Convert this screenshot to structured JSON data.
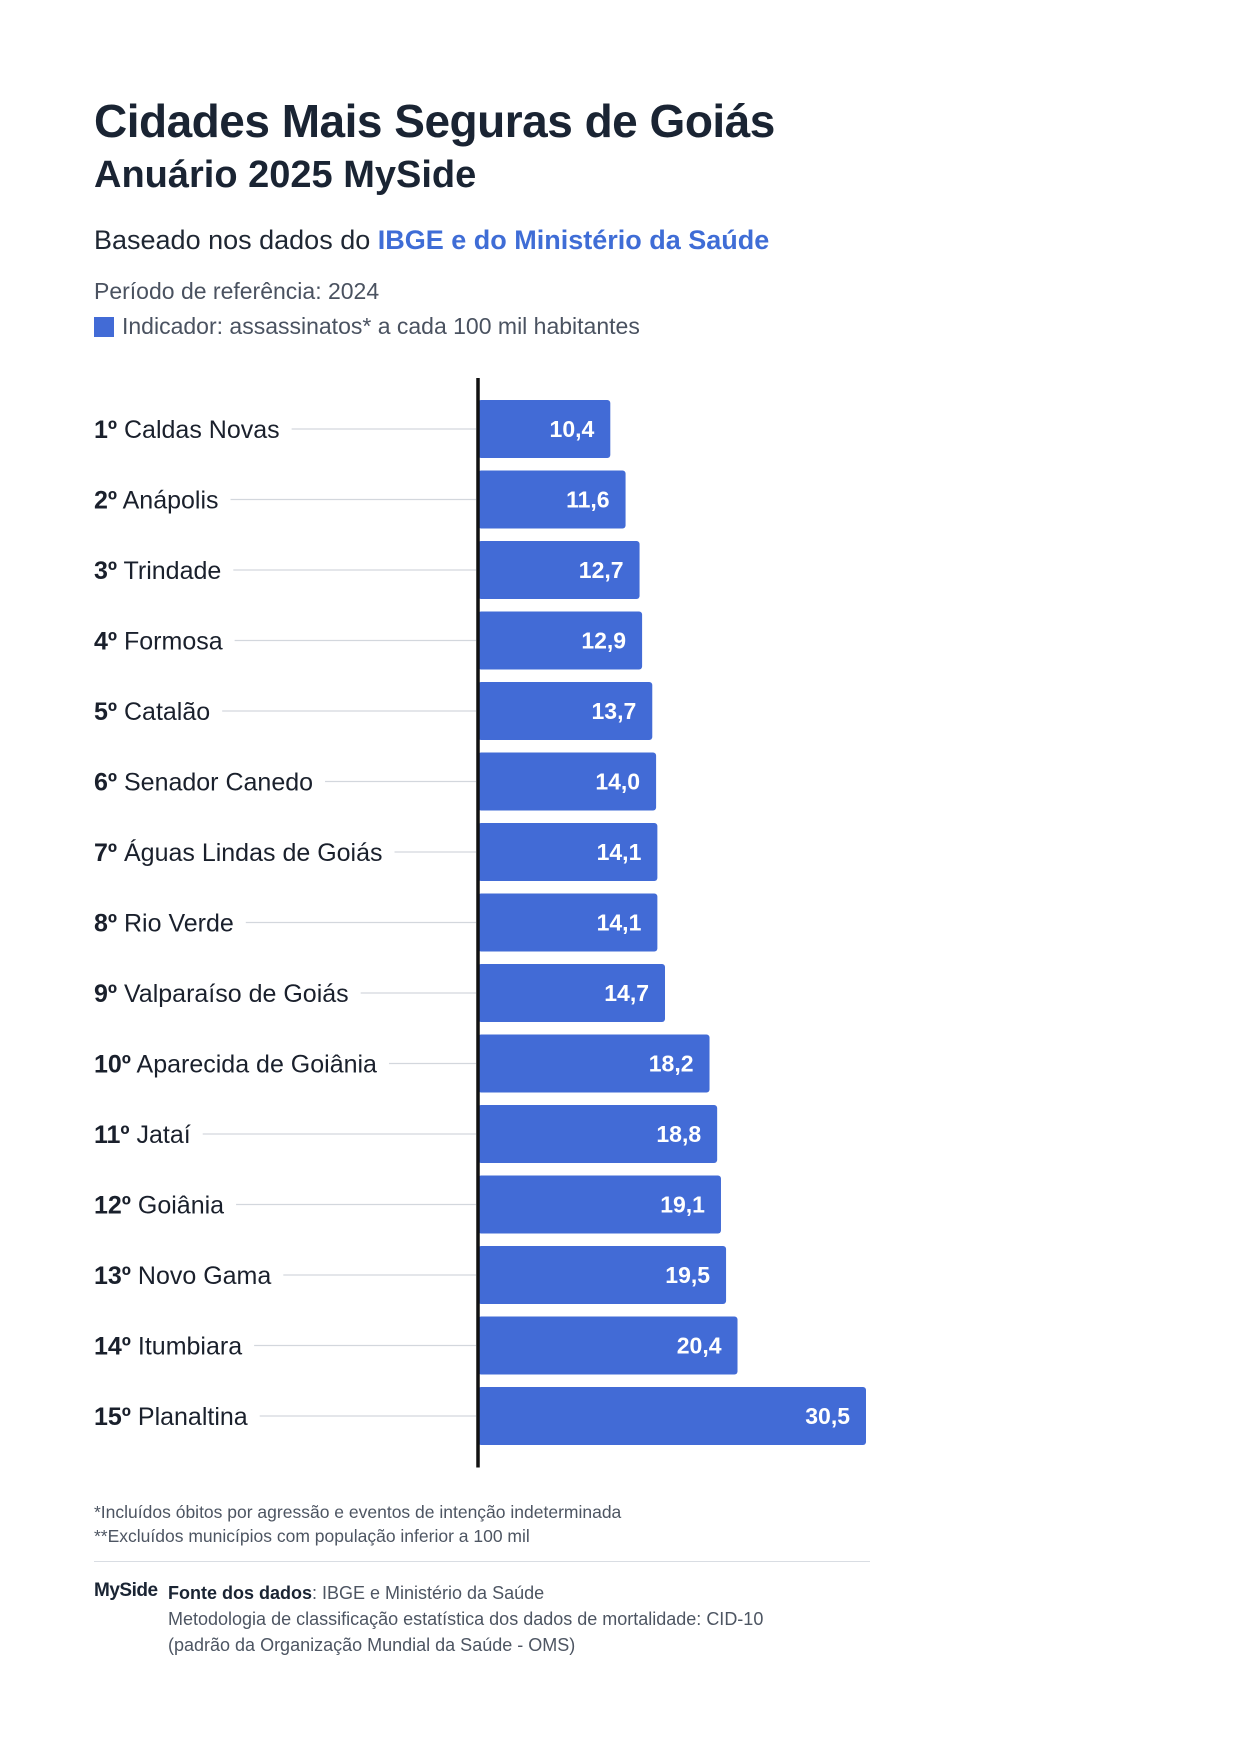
{
  "header": {
    "title": "Cidades Mais Seguras de Goiás",
    "subtitle": "Anuário 2025 MySide",
    "based_prefix": "Baseado nos dados do ",
    "based_highlight": "IBGE e do Ministério da Saúde",
    "period": "Período de referência: 2024",
    "indicator": "Indicador: assassinatos* a cada 100 mil habitantes"
  },
  "colors": {
    "bar": "#426bd6",
    "highlight": "#3f6dd6",
    "axis": "#111111"
  },
  "chart_data": {
    "type": "bar",
    "orientation": "horizontal",
    "title": "Cidades Mais Seguras de Goiás",
    "categories": [
      {
        "rank": "1º",
        "name": "Caldas Novas"
      },
      {
        "rank": "2º",
        "name": "Anápolis"
      },
      {
        "rank": "3º",
        "name": "Trindade"
      },
      {
        "rank": "4º",
        "name": "Formosa"
      },
      {
        "rank": "5º",
        "name": "Catalão"
      },
      {
        "rank": "6º",
        "name": "Senador Canedo"
      },
      {
        "rank": "7º",
        "name": "Águas Lindas de Goiás"
      },
      {
        "rank": "8º",
        "name": "Rio Verde"
      },
      {
        "rank": "9º",
        "name": "Valparaíso de Goiás"
      },
      {
        "rank": "10º",
        "name": "Aparecida de Goiânia"
      },
      {
        "rank": "11º",
        "name": "Jataí"
      },
      {
        "rank": "12º",
        "name": "Goiânia"
      },
      {
        "rank": "13º",
        "name": "Novo Gama"
      },
      {
        "rank": "14º",
        "name": "Itumbiara"
      },
      {
        "rank": "15º",
        "name": "Planaltina"
      }
    ],
    "values": [
      10.4,
      11.6,
      12.7,
      12.9,
      13.7,
      14.0,
      14.1,
      14.1,
      14.7,
      18.2,
      18.8,
      19.1,
      19.5,
      20.4,
      30.5
    ],
    "value_labels": [
      "10,4",
      "11,6",
      "12,7",
      "12,9",
      "13,7",
      "14,0",
      "14,1",
      "14,1",
      "14,7",
      "18,2",
      "18,8",
      "19,1",
      "19,5",
      "20,4",
      "30,5"
    ],
    "xlim": [
      0,
      30.5
    ]
  },
  "notes": {
    "note1": "*Incluídos óbitos por agressão e eventos de intenção indeterminada",
    "note2": "**Excluídos municípios com população inferior a 100 mil"
  },
  "footer": {
    "brand": "MySide",
    "source_label": "Fonte dos dados",
    "source_text": ": IBGE e Ministério da Saúde",
    "methodology": "Metodologia de classificação estatística dos dados de mortalidade: CID-10",
    "methodology2": "(padrão da Organização Mundial da Saúde - OMS)"
  }
}
